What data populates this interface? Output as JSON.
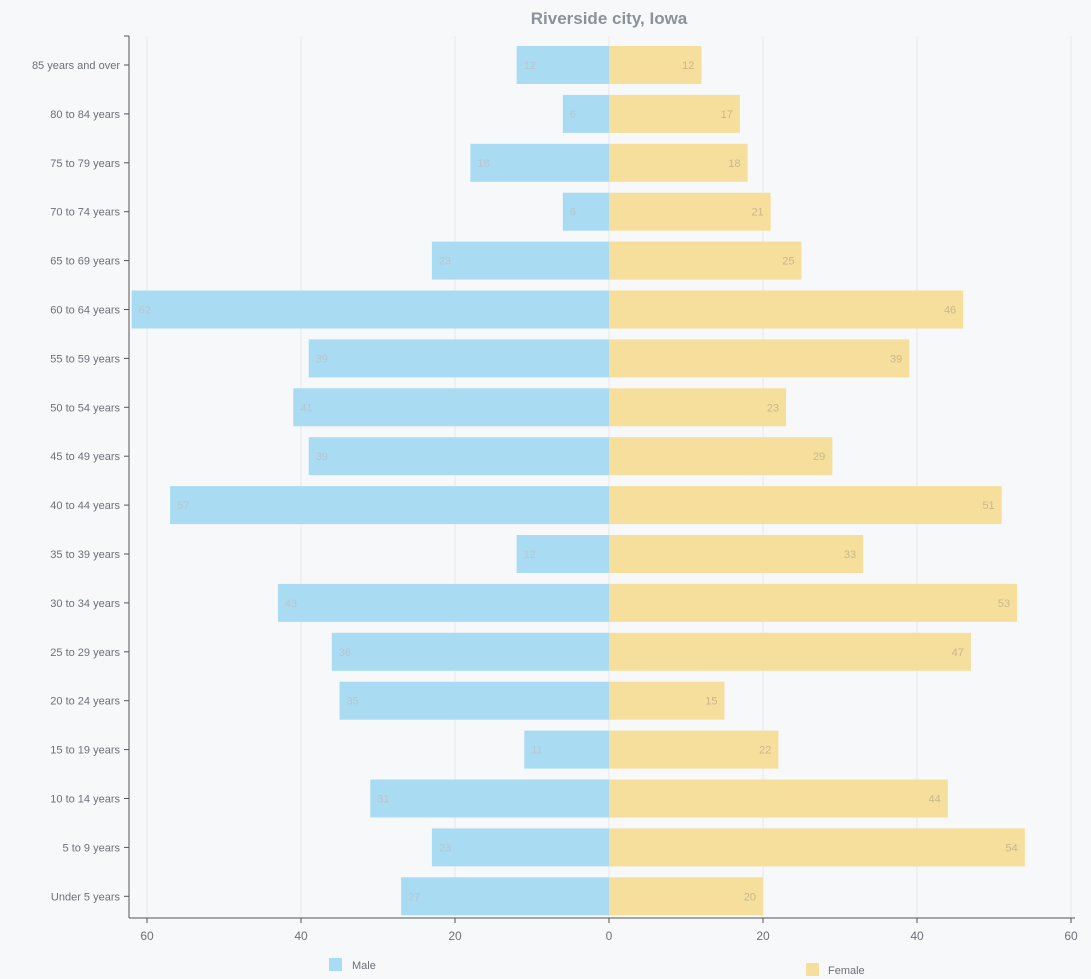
{
  "chart_data": {
    "type": "bar",
    "orientation": "horizontal-diverging",
    "title": "Riverside city, Iowa",
    "categories": [
      "85 years and over",
      "80 to 84 years",
      "75 to 79 years",
      "70 to 74 years",
      "65 to 69 years",
      "60 to 64 years",
      "55 to 59 years",
      "50 to 54 years",
      "45 to 49 years",
      "40 to 44 years",
      "35 to 39 years",
      "30 to 34 years",
      "25 to 29 years",
      "20 to 24 years",
      "15 to 19 years",
      "10 to 14 years",
      "5 to 9 years",
      "Under 5 years"
    ],
    "series": [
      {
        "name": "Male",
        "color": "#a9dcf3",
        "values": [
          12,
          6,
          18,
          6,
          23,
          62,
          39,
          41,
          39,
          57,
          12,
          43,
          36,
          35,
          11,
          31,
          23,
          27
        ]
      },
      {
        "name": "Female",
        "color": "#f6df9c",
        "values": [
          12,
          17,
          18,
          21,
          25,
          46,
          39,
          23,
          29,
          51,
          33,
          53,
          47,
          15,
          22,
          44,
          54,
          20
        ]
      }
    ],
    "xlim": [
      -60,
      60
    ],
    "xticks": [
      {
        "value": -60,
        "label": "60"
      },
      {
        "value": -40,
        "label": "40"
      },
      {
        "value": -20,
        "label": "20"
      },
      {
        "value": 0,
        "label": "0"
      },
      {
        "value": 20,
        "label": "20"
      },
      {
        "value": 40,
        "label": "40"
      },
      {
        "value": 60,
        "label": "60"
      }
    ],
    "grid": true,
    "legend": "bottom"
  }
}
